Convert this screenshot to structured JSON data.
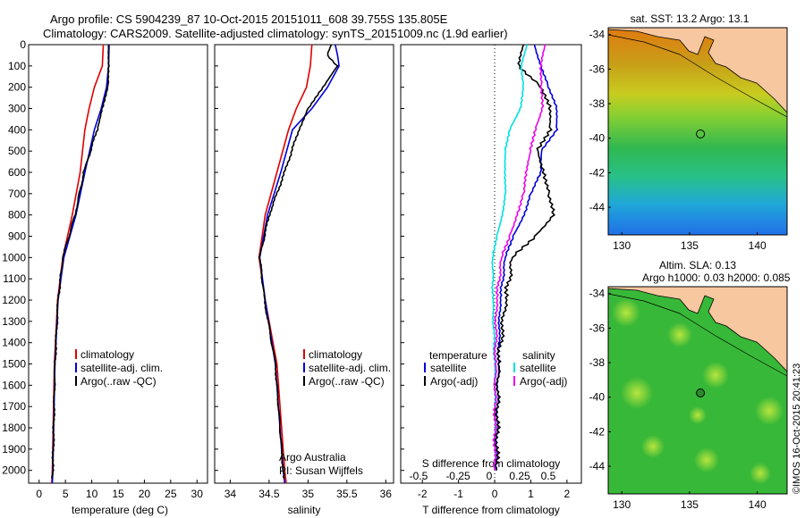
{
  "header": {
    "title_line1": "Argo profile: CS 5904239_87 10-Oct-2015 20151011_608 39.755S 135.805E",
    "title_line2": "Climatology: CARS2009. Satellite-adjusted climatology: synTS_20151009.nc (1.9d earlier)"
  },
  "watermark": "©IMOS 16-Oct-2015 20:41:23",
  "colors": {
    "climatology": "#e00000",
    "satellite": "#0000dd",
    "argo": "#000000",
    "sal_satellite": "#00e0e0",
    "sal_argo": "#ee00ee"
  },
  "chart_data": [
    {
      "type": "line",
      "xlabel": "temperature (deg C)",
      "xlim": [
        -2,
        32
      ],
      "ylim": [
        2060,
        0
      ],
      "xticks": [
        "0",
        "5",
        "10",
        "15",
        "20",
        "25",
        "30"
      ],
      "yticks": [
        "0",
        "100",
        "200",
        "300",
        "400",
        "500",
        "600",
        "700",
        "800",
        "900",
        "1000",
        "1100",
        "1200",
        "1300",
        "1400",
        "1500",
        "1600",
        "1700",
        "1800",
        "1900",
        "2000"
      ],
      "legend": [
        "climatology",
        "satellite-adj. clim.",
        "Argo(..raw -QC)"
      ],
      "series": [
        {
          "name": "climatology",
          "depth": [
            0,
            100,
            200,
            300,
            400,
            600,
            800,
            1000,
            1200,
            1500,
            2000,
            2060
          ],
          "values": [
            12.2,
            12,
            10.5,
            9.5,
            8.7,
            7.8,
            6.3,
            4.5,
            3.5,
            2.9,
            2.5,
            2.4
          ]
        },
        {
          "name": "satellite-adj. clim.",
          "depth": [
            0,
            100,
            200,
            300,
            400,
            600,
            800,
            1000,
            1200,
            1500,
            2000,
            2060
          ],
          "values": [
            13.3,
            13.2,
            12.8,
            11.8,
            10.5,
            8.7,
            7,
            4.7,
            3.6,
            3,
            2.6,
            2.5
          ]
        },
        {
          "name": "Argo(..raw -QC)",
          "depth": [
            0,
            100,
            200,
            300,
            400,
            600,
            800,
            1000,
            1200,
            1500,
            2000,
            2040
          ],
          "values": [
            13.2,
            13.3,
            13.1,
            11.9,
            11,
            8.5,
            6.8,
            4.5,
            3.6,
            3,
            2.6,
            2.5
          ]
        }
      ]
    },
    {
      "type": "line",
      "xlabel": "salinity",
      "xlim": [
        33.8,
        36.1
      ],
      "ylim": [
        2060,
        0
      ],
      "xticks": [
        "34",
        "34.5",
        "35",
        "35.5",
        "36"
      ],
      "legend": [
        "climatology",
        "satellite-adj. clim.",
        "Argo(..raw -QC)"
      ],
      "annotation": [
        "Argo Australia",
        "PI: Susan Wijffels"
      ],
      "series": [
        {
          "name": "climatology",
          "depth": [
            0,
            100,
            200,
            300,
            400,
            600,
            800,
            1000,
            1200,
            1500,
            2000,
            2060
          ],
          "values": [
            35.05,
            35.03,
            34.98,
            34.85,
            34.75,
            34.6,
            34.45,
            34.37,
            34.45,
            34.6,
            34.7,
            34.72
          ]
        },
        {
          "name": "satellite-adj. clim.",
          "depth": [
            0,
            50,
            100,
            200,
            300,
            400,
            600,
            800,
            1000,
            1200,
            1500,
            2000,
            2060
          ],
          "values": [
            35.35,
            35.38,
            35.4,
            35.25,
            35.05,
            34.8,
            34.65,
            34.48,
            34.38,
            34.45,
            34.58,
            34.68,
            34.7
          ]
        },
        {
          "name": "Argo(..raw -QC)",
          "depth": [
            0,
            50,
            100,
            200,
            300,
            400,
            600,
            800,
            1000,
            1200,
            1500,
            2000,
            2040
          ],
          "values": [
            35.3,
            35.25,
            35.38,
            35.2,
            35.0,
            34.88,
            34.7,
            34.5,
            34.38,
            34.44,
            34.58,
            34.68,
            34.7
          ]
        }
      ]
    },
    {
      "type": "line",
      "xlabel": "T difference from climatology",
      "xlabel_top": "S difference from climatology",
      "xlim": [
        -2.6,
        2.4
      ],
      "ylim": [
        2060,
        0
      ],
      "xticks": [
        "-2",
        "-1",
        "0",
        "1",
        "2"
      ],
      "xticks_top": [
        "-0.5",
        "-0.25",
        "0",
        "0.25",
        "0.5"
      ],
      "legend_headers": [
        "temperature",
        "salinity"
      ],
      "legend": [
        "satellite",
        "Argo(-adj)",
        "satellite",
        "Argo(-adj)"
      ],
      "series": [
        {
          "name": "satellite",
          "depth": [
            0,
            100,
            200,
            300,
            400,
            500,
            600,
            700,
            800,
            900,
            1000,
            1200,
            1500,
            2000
          ],
          "values": [
            1.1,
            1.3,
            1.5,
            1.7,
            1.7,
            1.3,
            1.3,
            1.0,
            0.8,
            0.5,
            0.3,
            0.15,
            0.1,
            0.05
          ]
        },
        {
          "name": "Argo(-adj)",
          "depth": [
            0,
            100,
            200,
            300,
            400,
            500,
            600,
            700,
            800,
            900,
            1000,
            1200,
            1500,
            2000
          ],
          "values": [
            0.8,
            0.7,
            1.3,
            1.5,
            1.5,
            1.2,
            1.4,
            1.5,
            1.6,
            1.1,
            0.5,
            0.3,
            0.1,
            0.05
          ]
        },
        {
          "name": "satellite",
          "depth": [
            0,
            100,
            200,
            300,
            400,
            500,
            600,
            700,
            800,
            900,
            1000,
            1200,
            1500,
            2000
          ],
          "values": [
            0.9,
            0.75,
            0.8,
            0.7,
            0.4,
            0.3,
            0.3,
            0.3,
            0.2,
            0.05,
            -0.05,
            -0.05,
            0,
            0
          ]
        },
        {
          "name": "Argo(-adj)",
          "depth": [
            0,
            100,
            200,
            300,
            400,
            500,
            600,
            700,
            800,
            900,
            1000,
            1200,
            1500,
            2000
          ],
          "values": [
            1.4,
            1.3,
            1.3,
            1.3,
            1.1,
            1.0,
            0.9,
            0.8,
            0.6,
            0.4,
            0.2,
            0.05,
            0.02,
            0.0
          ]
        }
      ]
    },
    {
      "type": "heatmap",
      "title": "sat. SST: 13.2  Argo: 13.1",
      "xticks": [
        "130",
        "135",
        "140"
      ],
      "yticks": [
        "-34",
        "-36",
        "-38",
        "-40",
        "-42",
        "-44"
      ]
    },
    {
      "type": "heatmap",
      "title_line1": "Altim. SLA: 0.13",
      "title_line2": "Argo h1000: 0.03 h2000: 0.085",
      "xticks": [
        "130",
        "135",
        "140"
      ],
      "yticks": [
        "-34",
        "-36",
        "-38",
        "-40",
        "-42",
        "-44"
      ]
    }
  ]
}
